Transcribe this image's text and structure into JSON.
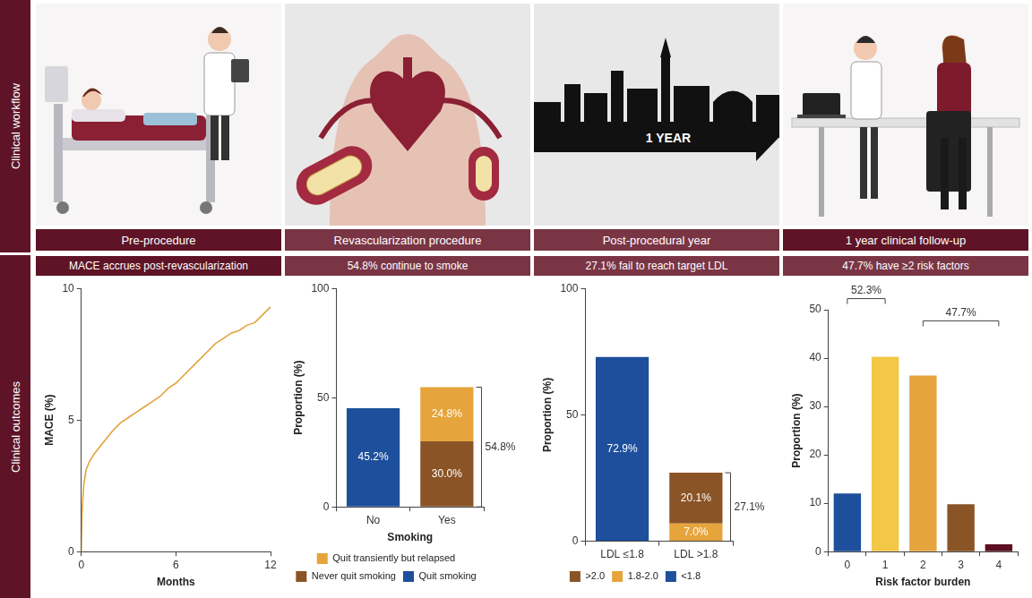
{
  "sidebar": [
    "Clinical workflow",
    "Clinical outcomes"
  ],
  "workflow": {
    "stages": [
      "Pre-procedure",
      "Revascularization procedure",
      "Post-procedural year",
      "1 year clinical follow-up"
    ],
    "arrow_text": "1 YEAR"
  },
  "chart_data": [
    {
      "type": "line",
      "title": "MACE accrues post-revascularization",
      "x": [
        0,
        0.05,
        0.15,
        0.3,
        0.5,
        0.8,
        1.2,
        1.6,
        2,
        2.5,
        3,
        3.5,
        4,
        4.5,
        5,
        5.5,
        6,
        6.5,
        7,
        7.5,
        8,
        8.5,
        9,
        9.5,
        10,
        10.5,
        11,
        11.5,
        12
      ],
      "values": [
        0,
        1.5,
        2.5,
        3.1,
        3.4,
        3.7,
        4.0,
        4.3,
        4.6,
        4.9,
        5.1,
        5.3,
        5.5,
        5.7,
        5.9,
        6.2,
        6.4,
        6.7,
        7.0,
        7.3,
        7.6,
        7.9,
        8.1,
        8.3,
        8.4,
        8.6,
        8.7,
        9.0,
        9.3
      ],
      "color": "#e3a23c",
      "marker": "none",
      "xlabel": "Months",
      "ylabel": "MACE (%)",
      "xlim": [
        0,
        12
      ],
      "xticks": [
        0,
        6,
        12
      ],
      "ylim": [
        0,
        10
      ],
      "yticks": [
        0,
        5,
        10
      ],
      "grid": false
    },
    {
      "type": "bar",
      "stacked": true,
      "title": "54.8% continue to smoke",
      "categories": [
        "No",
        "Yes"
      ],
      "xlabel": "Smoking",
      "ylabel": "Proportion (%)",
      "ylim": [
        0,
        100
      ],
      "yticks": [
        0,
        50,
        100
      ],
      "grid": false,
      "legend": "bottom",
      "data_labels": true,
      "series": [
        {
          "name": "Quit smoking",
          "color": "#1d4f9c",
          "values": [
            45.2,
            null
          ],
          "value_labels": [
            "45.2%",
            null
          ]
        },
        {
          "name": "Never quit smoking",
          "color": "#8a5426",
          "values": [
            null,
            30.0
          ],
          "value_labels": [
            null,
            "30.0%"
          ]
        },
        {
          "name": "Quit transiently but relapsed",
          "color": "#e6a43c",
          "values": [
            null,
            24.8
          ],
          "value_labels": [
            null,
            "24.8%"
          ]
        }
      ],
      "annotations": [
        {
          "label": "54.8%",
          "category": "Yes",
          "value": 54.8
        }
      ]
    },
    {
      "type": "bar",
      "stacked": true,
      "title": "27.1% fail to reach target LDL",
      "categories": [
        "LDL ≤1.8",
        "LDL >1.8"
      ],
      "ylabel": "Proportion (%)",
      "ylim": [
        0,
        100
      ],
      "yticks": [
        0,
        50,
        100
      ],
      "grid": false,
      "legend": "bottom",
      "data_labels": true,
      "series": [
        {
          "name": "<1.8",
          "color": "#1d4f9c",
          "values": [
            72.9,
            null
          ],
          "value_labels": [
            "72.9%",
            null
          ]
        },
        {
          "name": "1.8-2.0",
          "color": "#e6a43c",
          "values": [
            null,
            7.0
          ],
          "value_labels": [
            null,
            "7.0%"
          ]
        },
        {
          "name": ">2.0",
          "color": "#8a5426",
          "values": [
            null,
            20.1
          ],
          "value_labels": [
            null,
            "20.1%"
          ]
        }
      ],
      "annotations": [
        {
          "label": "27.1%",
          "category": "LDL >1.8",
          "value": 27.1
        }
      ]
    },
    {
      "type": "bar",
      "title": "47.7% have ≥2 risk factors",
      "categories": [
        "0",
        "1",
        "2",
        "3",
        "4"
      ],
      "values": [
        12.0,
        40.3,
        36.4,
        9.8,
        1.5
      ],
      "colors": [
        "#1d4f9c",
        "#f3c846",
        "#e6a43c",
        "#8a5426",
        "#5c0f22"
      ],
      "xlabel": "Risk factor burden",
      "ylabel": "Proportion (%)",
      "ylim": [
        0,
        50
      ],
      "yticks": [
        0,
        10,
        20,
        30,
        40,
        50
      ],
      "grid": false,
      "annotations": [
        {
          "label": "52.3%",
          "from": "0",
          "to": "1",
          "value": 52.3
        },
        {
          "label": "47.7%",
          "from": "2",
          "to": "4",
          "value": 47.7
        }
      ]
    }
  ]
}
